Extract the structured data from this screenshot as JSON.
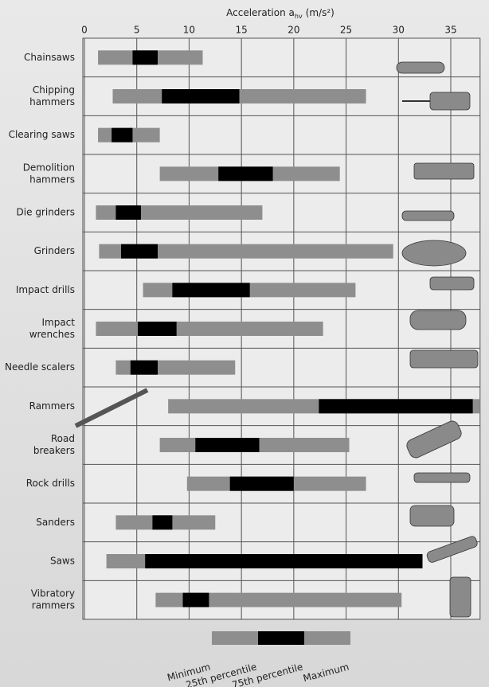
{
  "chart_data": {
    "type": "range_bar",
    "x_label": "Acceleration a",
    "x_label_sub": "hv",
    "x_label_unit": "(m/s²)",
    "categories": [
      [
        "Chainsaws"
      ],
      [
        "Chipping",
        "hammers"
      ],
      [
        "Clearing saws"
      ],
      [
        "Demolition",
        "hammers"
      ],
      [
        "Die grinders"
      ],
      [
        "Grinders"
      ],
      [
        "Impact drills"
      ],
      [
        "Impact",
        "wrenches"
      ],
      [
        "Needle scalers"
      ],
      [
        "Rammers"
      ],
      [
        "Road",
        "breakers"
      ],
      [
        "Rock drills"
      ],
      [
        "Sanders"
      ],
      [
        "Saws"
      ],
      [
        "Vibratory",
        "rammers"
      ]
    ],
    "series": [
      {
        "name": "Minimum",
        "color": "#8e8e8e",
        "values": [
          1.3,
          2.7,
          1.3,
          7.2,
          1.1,
          1.4,
          5.6,
          1.1,
          3.0,
          8.0,
          7.2,
          9.8,
          3.0,
          2.1,
          6.8
        ]
      },
      {
        "name": "25th percentile",
        "color": "#000000",
        "values": [
          4.6,
          7.4,
          2.6,
          12.8,
          3.0,
          3.5,
          8.4,
          5.1,
          4.4,
          22.4,
          10.6,
          13.9,
          6.5,
          5.8,
          9.4
        ]
      },
      {
        "name": "75th percentile",
        "color": "#000000",
        "values": [
          7.0,
          14.8,
          4.6,
          18.0,
          5.4,
          7.0,
          15.8,
          8.8,
          7.0,
          37.1,
          16.7,
          20.0,
          8.4,
          32.3,
          11.9
        ]
      },
      {
        "name": "Maximum",
        "color": "#8e8e8e",
        "values": [
          11.3,
          26.9,
          7.2,
          24.4,
          17.0,
          29.5,
          25.9,
          22.8,
          14.4,
          37.8,
          25.3,
          26.9,
          12.5,
          32.3,
          30.3
        ]
      }
    ],
    "xlim": [
      0,
      37.8
    ],
    "xticks": [
      0,
      5,
      10,
      15,
      20,
      25,
      30,
      35
    ],
    "grid": true
  }
}
